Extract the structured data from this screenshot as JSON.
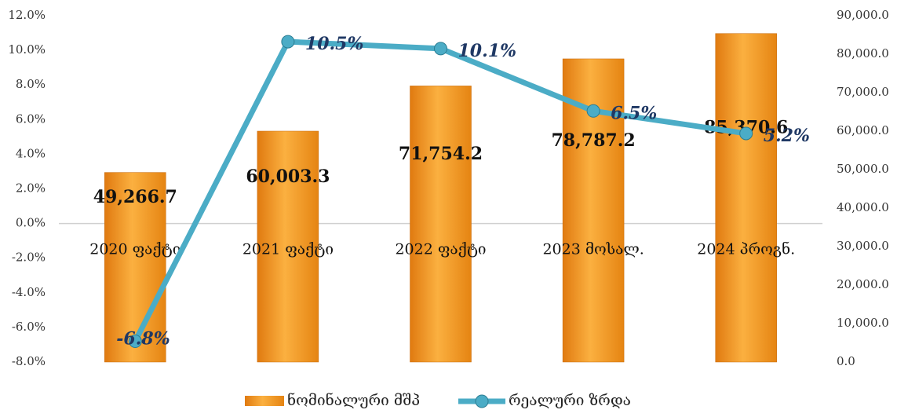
{
  "chart_data": {
    "type": "bar_line",
    "categories": [
      "2020 ფაქტი",
      "2021 ფაქტი",
      "2022 ფაქტი",
      "2023 მოსალ.",
      "2024 პროგნ."
    ],
    "series": [
      {
        "name": "ნომინალური მშპ",
        "type": "bar",
        "axis": "y2",
        "color": "#f7941d",
        "values": [
          49266.7,
          60003.3,
          71754.2,
          78787.2,
          85370.6
        ],
        "value_labels": [
          "49,266.7",
          "60,003.3",
          "71,754.2",
          "78,787.2",
          "85,370.6"
        ]
      },
      {
        "name": "რეალური ზრდა",
        "type": "line",
        "axis": "y",
        "color": "#4bacc6",
        "values": [
          -6.8,
          10.5,
          10.1,
          6.5,
          5.2
        ],
        "value_labels": [
          "-6.8%",
          "10.5%",
          "10.1%",
          "6.5%",
          "5.2%"
        ]
      }
    ],
    "ylim": [
      -8,
      12
    ],
    "yticks": [
      {
        "value": -8,
        "label": "-8.0%"
      },
      {
        "value": -6,
        "label": "-6.0%"
      },
      {
        "value": -4,
        "label": "-4.0%"
      },
      {
        "value": -2,
        "label": "-2.0%"
      },
      {
        "value": 0,
        "label": "0.0%"
      },
      {
        "value": 2,
        "label": "2.0%"
      },
      {
        "value": 4,
        "label": "4.0%"
      },
      {
        "value": 6,
        "label": "6.0%"
      },
      {
        "value": 8,
        "label": "8.0%"
      },
      {
        "value": 10,
        "label": "10.0%"
      },
      {
        "value": 12,
        "label": "12.0%"
      }
    ],
    "y2lim": [
      0,
      90000
    ],
    "y2ticks": [
      {
        "value": 0,
        "label": "0.0"
      },
      {
        "value": 10000,
        "label": "10,000.0"
      },
      {
        "value": 20000,
        "label": "20,000.0"
      },
      {
        "value": 30000,
        "label": "30,000.0"
      },
      {
        "value": 40000,
        "label": "40,000.0"
      },
      {
        "value": 50000,
        "label": "50,000.0"
      },
      {
        "value": 60000,
        "label": "60,000.0"
      },
      {
        "value": 70000,
        "label": "70,000.0"
      },
      {
        "value": 80000,
        "label": "80,000.0"
      },
      {
        "value": 90000,
        "label": "90,000.0"
      }
    ],
    "legend": "bottom"
  }
}
